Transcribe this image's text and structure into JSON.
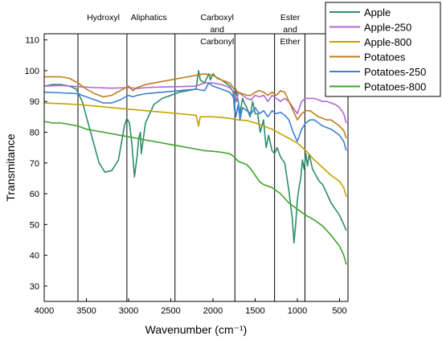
{
  "chart_data": {
    "type": "line",
    "xlabel": "Wavenumber (cm⁻¹)",
    "ylabel": "Transmitance",
    "xlim": [
      4000,
      400
    ],
    "ylim": [
      25,
      112
    ],
    "x_ticks": [
      4000,
      3500,
      3000,
      2500,
      2000,
      1500,
      1000,
      500
    ],
    "y_ticks": [
      30,
      40,
      50,
      60,
      70,
      80,
      90,
      100,
      110
    ],
    "grid": false,
    "legend_position": "top-right",
    "region_lines": [
      3600,
      3020,
      2450,
      1740,
      1270,
      910
    ],
    "region_labels": [
      {
        "lines": [
          "Hydroxyl"
        ],
        "x": 3300
      },
      {
        "lines": [
          "Aliphatics"
        ],
        "x": 2760
      },
      {
        "lines": [
          "Carboxyl",
          "and",
          "Carbonyl"
        ],
        "x": 1950
      },
      {
        "lines": [
          "Ester",
          "and",
          "Ether"
        ],
        "x": 1085
      }
    ],
    "series": [
      {
        "name": "Apple",
        "color": "#2e8b6e",
        "points": [
          [
            4000,
            95
          ],
          [
            3900,
            95.5
          ],
          [
            3800,
            95.5
          ],
          [
            3700,
            95
          ],
          [
            3620,
            94
          ],
          [
            3550,
            90
          ],
          [
            3450,
            80
          ],
          [
            3350,
            70
          ],
          [
            3280,
            67
          ],
          [
            3200,
            67.5
          ],
          [
            3120,
            71
          ],
          [
            3050,
            82
          ],
          [
            3020,
            84.5
          ],
          [
            2990,
            83
          ],
          [
            2960,
            76
          ],
          [
            2930,
            65.5
          ],
          [
            2900,
            72
          ],
          [
            2880,
            78
          ],
          [
            2860,
            80
          ],
          [
            2850,
            73
          ],
          [
            2800,
            83
          ],
          [
            2700,
            89
          ],
          [
            2600,
            91
          ],
          [
            2500,
            92
          ],
          [
            2400,
            93
          ],
          [
            2300,
            93.5
          ],
          [
            2200,
            94
          ],
          [
            2170,
            100
          ],
          [
            2150,
            97
          ],
          [
            2100,
            96
          ],
          [
            2050,
            99
          ],
          [
            2030,
            97
          ],
          [
            2000,
            99
          ],
          [
            1950,
            97.5
          ],
          [
            1900,
            97
          ],
          [
            1850,
            96
          ],
          [
            1800,
            95
          ],
          [
            1760,
            93
          ],
          [
            1745,
            87
          ],
          [
            1730,
            94
          ],
          [
            1700,
            90
          ],
          [
            1680,
            86
          ],
          [
            1650,
            91
          ],
          [
            1620,
            89
          ],
          [
            1600,
            88
          ],
          [
            1560,
            85
          ],
          [
            1530,
            90
          ],
          [
            1500,
            86
          ],
          [
            1470,
            86
          ],
          [
            1440,
            80
          ],
          [
            1400,
            84
          ],
          [
            1370,
            75
          ],
          [
            1340,
            79
          ],
          [
            1300,
            74
          ],
          [
            1270,
            73
          ],
          [
            1240,
            75
          ],
          [
            1200,
            72
          ],
          [
            1150,
            70
          ],
          [
            1100,
            61
          ],
          [
            1060,
            52
          ],
          [
            1040,
            44
          ],
          [
            1020,
            50
          ],
          [
            1000,
            58
          ],
          [
            980,
            62
          ],
          [
            960,
            65
          ],
          [
            940,
            71
          ],
          [
            920,
            68
          ],
          [
            900,
            73
          ],
          [
            880,
            69
          ],
          [
            860,
            73
          ],
          [
            820,
            68
          ],
          [
            780,
            66
          ],
          [
            740,
            64
          ],
          [
            700,
            63
          ],
          [
            650,
            60
          ],
          [
            600,
            57
          ],
          [
            550,
            55
          ],
          [
            500,
            53
          ],
          [
            450,
            50
          ],
          [
            420,
            48
          ]
        ]
      },
      {
        "name": "Apple-250",
        "color": "#b266d6",
        "points": [
          [
            4000,
            95
          ],
          [
            3800,
            95.2
          ],
          [
            3600,
            94.8
          ],
          [
            3400,
            94.5
          ],
          [
            3200,
            94.3
          ],
          [
            3000,
            94.5
          ],
          [
            2900,
            94.2
          ],
          [
            2800,
            94.5
          ],
          [
            2600,
            94.7
          ],
          [
            2400,
            94.8
          ],
          [
            2200,
            95
          ],
          [
            2100,
            96
          ],
          [
            2000,
            96
          ],
          [
            1900,
            95.5
          ],
          [
            1800,
            94.5
          ],
          [
            1750,
            93
          ],
          [
            1720,
            90
          ],
          [
            1700,
            93
          ],
          [
            1650,
            92
          ],
          [
            1600,
            91
          ],
          [
            1550,
            90.5
          ],
          [
            1500,
            92
          ],
          [
            1450,
            91.5
          ],
          [
            1400,
            92
          ],
          [
            1350,
            90
          ],
          [
            1300,
            92
          ],
          [
            1250,
            91
          ],
          [
            1200,
            90
          ],
          [
            1150,
            91
          ],
          [
            1100,
            90
          ],
          [
            1050,
            88
          ],
          [
            1000,
            86
          ],
          [
            950,
            90
          ],
          [
            900,
            91
          ],
          [
            850,
            91
          ],
          [
            800,
            91
          ],
          [
            750,
            90.5
          ],
          [
            700,
            90
          ],
          [
            650,
            90
          ],
          [
            600,
            89.5
          ],
          [
            550,
            89
          ],
          [
            500,
            88
          ],
          [
            450,
            86
          ],
          [
            420,
            83
          ]
        ]
      },
      {
        "name": "Apple-800",
        "color": "#c8a000",
        "points": [
          [
            4000,
            89.5
          ],
          [
            3800,
            89.3
          ],
          [
            3600,
            89
          ],
          [
            3400,
            88.5
          ],
          [
            3200,
            88
          ],
          [
            3000,
            87.5
          ],
          [
            2800,
            87
          ],
          [
            2600,
            86.5
          ],
          [
            2400,
            86
          ],
          [
            2200,
            85.5
          ],
          [
            2170,
            82
          ],
          [
            2150,
            85
          ],
          [
            2100,
            85
          ],
          [
            2000,
            85
          ],
          [
            1900,
            84.8
          ],
          [
            1800,
            84.5
          ],
          [
            1700,
            84
          ],
          [
            1600,
            83.8
          ],
          [
            1500,
            83
          ],
          [
            1400,
            82
          ],
          [
            1300,
            81
          ],
          [
            1200,
            79.5
          ],
          [
            1100,
            78
          ],
          [
            1000,
            76.5
          ],
          [
            900,
            74
          ],
          [
            800,
            71
          ],
          [
            700,
            68.5
          ],
          [
            600,
            66
          ],
          [
            500,
            64
          ],
          [
            450,
            62
          ],
          [
            420,
            59
          ]
        ]
      },
      {
        "name": "Potatoes",
        "color": "#c07c1a",
        "points": [
          [
            4000,
            98
          ],
          [
            3800,
            98
          ],
          [
            3700,
            97.5
          ],
          [
            3600,
            96
          ],
          [
            3500,
            94
          ],
          [
            3400,
            92.5
          ],
          [
            3300,
            91.5
          ],
          [
            3200,
            92
          ],
          [
            3100,
            93.5
          ],
          [
            3000,
            95
          ],
          [
            2950,
            93.5
          ],
          [
            2900,
            94.5
          ],
          [
            2800,
            95.5
          ],
          [
            2600,
            96.5
          ],
          [
            2400,
            97.5
          ],
          [
            2200,
            98.5
          ],
          [
            2100,
            99
          ],
          [
            2000,
            98.5
          ],
          [
            1900,
            97
          ],
          [
            1800,
            96
          ],
          [
            1750,
            94
          ],
          [
            1700,
            93
          ],
          [
            1650,
            92.5
          ],
          [
            1600,
            92
          ],
          [
            1550,
            92
          ],
          [
            1500,
            93
          ],
          [
            1450,
            93.5
          ],
          [
            1400,
            93
          ],
          [
            1350,
            92
          ],
          [
            1300,
            93
          ],
          [
            1250,
            92
          ],
          [
            1200,
            93.5
          ],
          [
            1150,
            93
          ],
          [
            1100,
            90
          ],
          [
            1050,
            87
          ],
          [
            1000,
            84
          ],
          [
            950,
            86
          ],
          [
            900,
            87
          ],
          [
            850,
            87
          ],
          [
            800,
            86
          ],
          [
            750,
            85
          ],
          [
            700,
            84.5
          ],
          [
            650,
            84
          ],
          [
            600,
            84
          ],
          [
            550,
            83
          ],
          [
            500,
            82
          ],
          [
            450,
            80.5
          ],
          [
            420,
            78
          ]
        ]
      },
      {
        "name": "Potatoes-250",
        "color": "#3f80d3",
        "points": [
          [
            4000,
            93
          ],
          [
            3800,
            92.8
          ],
          [
            3600,
            92.5
          ],
          [
            3500,
            91.5
          ],
          [
            3400,
            90.5
          ],
          [
            3300,
            89.5
          ],
          [
            3200,
            89.5
          ],
          [
            3100,
            90.5
          ],
          [
            3000,
            92
          ],
          [
            2950,
            91.5
          ],
          [
            2900,
            92
          ],
          [
            2800,
            92.5
          ],
          [
            2600,
            93
          ],
          [
            2400,
            93.5
          ],
          [
            2200,
            94
          ],
          [
            2100,
            93.5
          ],
          [
            2050,
            96
          ],
          [
            2000,
            95
          ],
          [
            1900,
            94
          ],
          [
            1800,
            93
          ],
          [
            1750,
            91
          ],
          [
            1730,
            85
          ],
          [
            1700,
            89
          ],
          [
            1680,
            84
          ],
          [
            1650,
            88
          ],
          [
            1600,
            87
          ],
          [
            1550,
            86
          ],
          [
            1500,
            88
          ],
          [
            1450,
            86
          ],
          [
            1400,
            87
          ],
          [
            1350,
            85
          ],
          [
            1300,
            87
          ],
          [
            1250,
            86
          ],
          [
            1200,
            86.5
          ],
          [
            1150,
            85.5
          ],
          [
            1100,
            84
          ],
          [
            1050,
            80
          ],
          [
            1000,
            77
          ],
          [
            950,
            81
          ],
          [
            900,
            83
          ],
          [
            850,
            84
          ],
          [
            800,
            84
          ],
          [
            750,
            83
          ],
          [
            700,
            82
          ],
          [
            650,
            81.5
          ],
          [
            600,
            81
          ],
          [
            550,
            80
          ],
          [
            500,
            79
          ],
          [
            450,
            77
          ],
          [
            420,
            74
          ]
        ]
      },
      {
        "name": "Potatoes-800",
        "color": "#3ea32a",
        "points": [
          [
            4000,
            83.5
          ],
          [
            3900,
            83
          ],
          [
            3800,
            83
          ],
          [
            3700,
            82.5
          ],
          [
            3600,
            82
          ],
          [
            3500,
            81
          ],
          [
            3400,
            80.5
          ],
          [
            3300,
            80
          ],
          [
            3200,
            79.5
          ],
          [
            3100,
            79
          ],
          [
            3000,
            78.5
          ],
          [
            2900,
            78
          ],
          [
            2800,
            77.5
          ],
          [
            2700,
            77
          ],
          [
            2600,
            76.5
          ],
          [
            2500,
            76
          ],
          [
            2400,
            75.5
          ],
          [
            2300,
            75
          ],
          [
            2200,
            74.5
          ],
          [
            2100,
            74
          ],
          [
            2000,
            73.8
          ],
          [
            1900,
            73.5
          ],
          [
            1800,
            73
          ],
          [
            1750,
            72
          ],
          [
            1700,
            70.5
          ],
          [
            1650,
            70
          ],
          [
            1600,
            69.5
          ],
          [
            1550,
            68
          ],
          [
            1500,
            66
          ],
          [
            1450,
            64
          ],
          [
            1400,
            63
          ],
          [
            1300,
            62
          ],
          [
            1200,
            60
          ],
          [
            1100,
            57
          ],
          [
            1000,
            55
          ],
          [
            900,
            53
          ],
          [
            800,
            51.5
          ],
          [
            700,
            49.5
          ],
          [
            600,
            46.5
          ],
          [
            500,
            43
          ],
          [
            450,
            40
          ],
          [
            420,
            37
          ]
        ]
      }
    ]
  }
}
